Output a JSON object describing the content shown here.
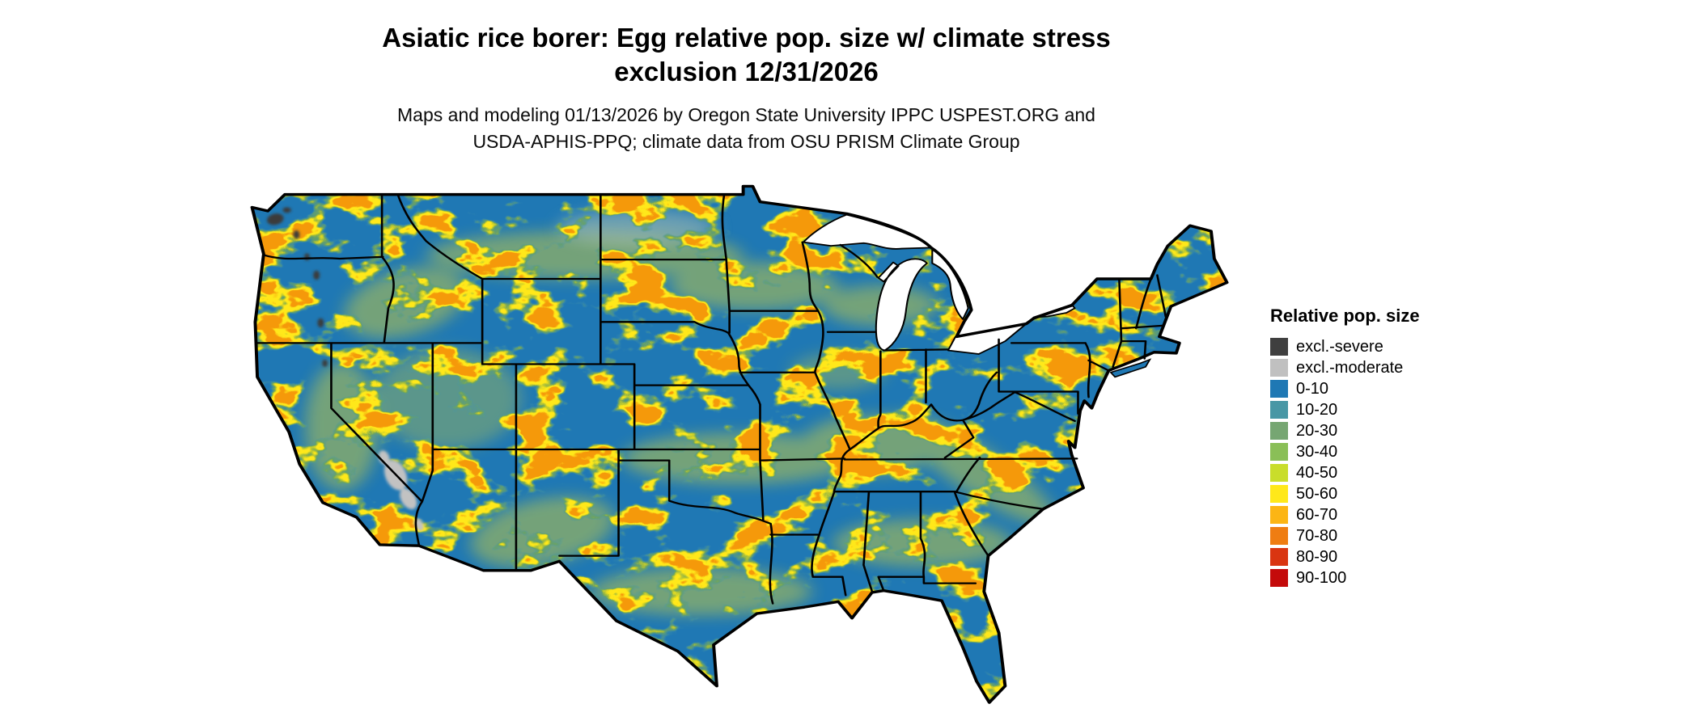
{
  "title": {
    "line1": "Asiatic rice borer: Egg relative pop. size w/ climate stress",
    "line2": "exclusion 12/31/2026"
  },
  "subtitle": {
    "line1": "Maps and modeling 01/13/2026 by Oregon State University IPPC USPEST.ORG and",
    "line2": "USDA-APHIS-PPQ; climate data from OSU PRISM Climate Group"
  },
  "map": {
    "region": "Contiguous United States",
    "base_color": "#1f78b4",
    "state_border_color": "#000000",
    "water_color": "#ffffff",
    "speckle_colors": {
      "teal": "#4897a5",
      "green": "#76a672",
      "yellow": "#ffe81a",
      "orange": "#f59a0b",
      "excl_moderate": "#c2c2c2",
      "excl_severe": "#3a3a3a"
    }
  },
  "legend": {
    "title": "Relative pop. size",
    "items": [
      {
        "label": "excl.-severe",
        "color": "#3f3f3f"
      },
      {
        "label": "excl.-moderate",
        "color": "#c0c0c0"
      },
      {
        "label": "0-10",
        "color": "#1f78b4"
      },
      {
        "label": "10-20",
        "color": "#4897a5"
      },
      {
        "label": "20-30",
        "color": "#76a672"
      },
      {
        "label": "30-40",
        "color": "#8abf57"
      },
      {
        "label": "40-50",
        "color": "#c9dd2b"
      },
      {
        "label": "50-60",
        "color": "#ffe81a"
      },
      {
        "label": "60-70",
        "color": "#fcb514"
      },
      {
        "label": "70-80",
        "color": "#ef7d12"
      },
      {
        "label": "80-90",
        "color": "#d93511"
      },
      {
        "label": "90-100",
        "color": "#c40a0a"
      }
    ]
  }
}
